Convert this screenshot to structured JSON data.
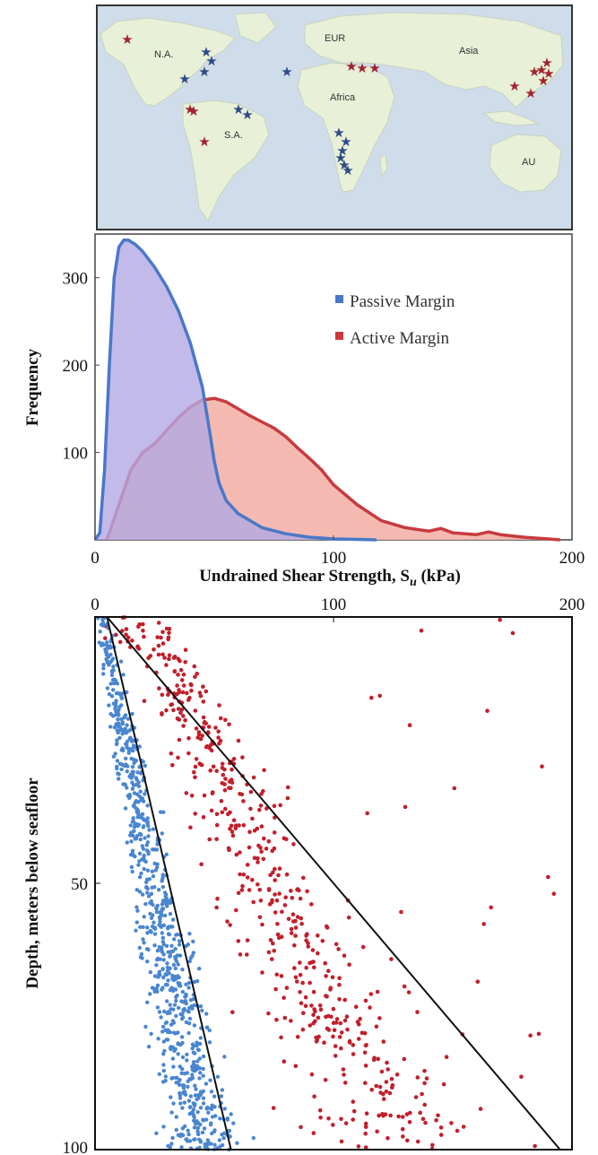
{
  "map": {
    "labels": [
      "N.A.",
      "EUR",
      "Asia",
      "Africa",
      "S.A.",
      "AU"
    ],
    "colors": {
      "ocean": "#cfdcea",
      "land": "#e8f0d8",
      "passive_star": "#2e4a86",
      "active_star": "#a32330"
    }
  },
  "chart_data": [
    {
      "type": "area",
      "xlabel": "Undrained Shear Strength, S",
      "xlabel_subscript": "u",
      "xlabel_unit": " (kPa)",
      "ylabel": "Frequency",
      "xlim": [
        0,
        200
      ],
      "ylim": [
        0,
        350
      ],
      "xticks": [
        0,
        100,
        200
      ],
      "yticks": [
        100,
        200,
        300
      ],
      "legend_position": "top-right",
      "series": [
        {
          "name": "Passive Margin",
          "color": "#4a78c8",
          "fill": "#b3a9e3",
          "x": [
            0,
            2,
            4,
            6,
            8,
            10,
            12,
            14,
            17,
            20,
            25,
            30,
            35,
            40,
            45,
            48,
            50,
            52,
            55,
            60,
            70,
            80,
            90,
            100,
            110,
            118
          ],
          "y": [
            0,
            8,
            80,
            200,
            300,
            335,
            343,
            343,
            338,
            330,
            312,
            290,
            262,
            225,
            175,
            125,
            90,
            65,
            45,
            30,
            14,
            7,
            3,
            1,
            0.5,
            0
          ]
        },
        {
          "name": "Active Margin",
          "color": "#c83a3e",
          "fill": "#f3b2a8",
          "x": [
            5,
            10,
            15,
            20,
            25,
            30,
            35,
            40,
            45,
            50,
            55,
            60,
            65,
            70,
            75,
            80,
            85,
            90,
            95,
            100,
            110,
            120,
            130,
            140,
            145,
            150,
            160,
            165,
            170,
            180,
            190,
            195
          ],
          "y": [
            0,
            40,
            80,
            100,
            110,
            125,
            140,
            152,
            160,
            162,
            158,
            150,
            142,
            135,
            128,
            118,
            105,
            93,
            80,
            63,
            40,
            22,
            14,
            10,
            13,
            8,
            6,
            9,
            6,
            3,
            1,
            0
          ]
        }
      ]
    },
    {
      "type": "scatter",
      "ylabel": "Depth, meters below seafloor",
      "xlim": [
        0,
        200
      ],
      "ylim": [
        0,
        100
      ],
      "y_inverted": true,
      "x_axis_position": "top",
      "xticks": [
        0,
        100,
        200
      ],
      "yticks": [
        50,
        100
      ],
      "series": [
        {
          "name": "Passive Margin",
          "color": "#4a86d0"
        },
        {
          "name": "Active Margin",
          "color": "#c21f2b"
        }
      ],
      "trend_lines": [
        {
          "x": [
            5,
            57
          ],
          "y": [
            0,
            100
          ]
        },
        {
          "x": [
            5,
            195
          ],
          "y": [
            0,
            100
          ]
        }
      ]
    }
  ]
}
